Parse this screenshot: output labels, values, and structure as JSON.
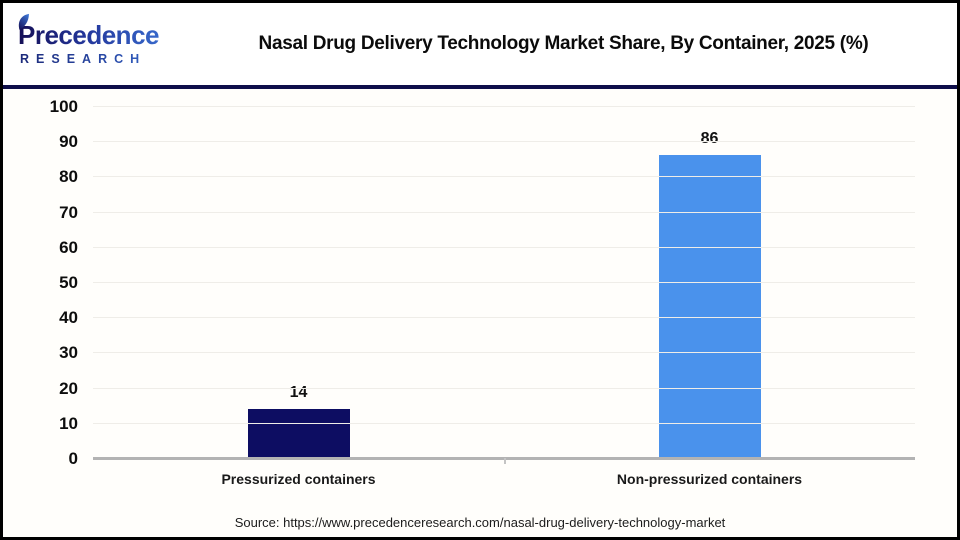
{
  "header": {
    "logo": {
      "line1": "Precedence",
      "line2": "RESEARCH"
    },
    "title": "Nasal Drug Delivery Technology Market Share, By Container, 2025 (%)"
  },
  "chart_data": {
    "type": "bar",
    "title": "Nasal Drug Delivery Technology Market Share, By Container, 2025 (%)",
    "categories": [
      "Pressurized containers",
      "Non-pressurized containers"
    ],
    "values": [
      14,
      86
    ],
    "value_labels": [
      "14",
      "86"
    ],
    "bar_colors": [
      "#0d0d62",
      "#4a92ec"
    ],
    "xlabel": "",
    "ylabel": "",
    "ylim": [
      0,
      100
    ],
    "yticks": [
      0,
      10,
      20,
      30,
      40,
      50,
      60,
      70,
      80,
      90,
      100
    ],
    "grid": true,
    "legend": "none"
  },
  "footer": {
    "source": "Source: https://www.precedenceresearch.com/nasal-drug-delivery-technology-market"
  },
  "colors": {
    "bar_pressurized": "#0d0d62",
    "bar_non_pressurized": "#4a92ec",
    "header_rule": "#0e0e4a",
    "axis_line": "#b3b3b3",
    "gridline": "#efede8",
    "logo_navy": "#150f56",
    "logo_blue": "#3f7bdc"
  }
}
